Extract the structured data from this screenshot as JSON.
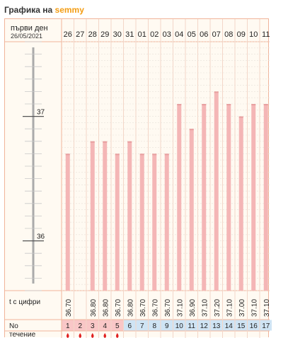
{
  "header": {
    "title_prefix": "Графика на",
    "username": "semmy"
  },
  "chart_header": {
    "first_day_label": "първи ден",
    "start_date": "26/05/2021"
  },
  "row_labels": {
    "temp_row": "t с цифри",
    "no_row": "No",
    "flow_row": "течение"
  },
  "colors": {
    "accent": "#f39c12",
    "border": "#f0b49a",
    "bar": "#f4b6b6",
    "cell_pink": "#f9c7c7",
    "cell_blue": "#cfe4f4",
    "flow_drop": "#e02020"
  },
  "chart_data": {
    "type": "bar",
    "title": "",
    "xlabel": "",
    "ylabel": "",
    "ylim": [
      35.6,
      37.6
    ],
    "y_ticks": [
      36,
      37
    ],
    "grid": true,
    "categories": [
      "26",
      "27",
      "28",
      "29",
      "30",
      "31",
      "01",
      "02",
      "03",
      "04",
      "05",
      "06",
      "07",
      "08",
      "09",
      "10",
      "11"
    ],
    "day_numbers": [
      1,
      2,
      3,
      4,
      5,
      6,
      7,
      8,
      9,
      10,
      11,
      12,
      13,
      14,
      15,
      16,
      17
    ],
    "values": [
      36.7,
      null,
      36.8,
      36.8,
      36.7,
      36.8,
      36.7,
      36.7,
      36.7,
      37.1,
      36.9,
      37.1,
      37.2,
      37.1,
      37.0,
      37.1,
      37.1
    ],
    "value_labels": [
      "36.70",
      "",
      "36.80",
      "36.80",
      "36.70",
      "36.80",
      "36.70",
      "36.70",
      "36.70",
      "37.10",
      "36.90",
      "37.10",
      "37.20",
      "37.10",
      "37.00",
      "37.10",
      "37.10"
    ],
    "day_cell_color": [
      "pink",
      "pink",
      "pink",
      "pink",
      "pink",
      "blue",
      "blue",
      "blue",
      "blue",
      "blue",
      "blue",
      "blue",
      "blue",
      "blue",
      "blue",
      "blue",
      "blue"
    ],
    "flow": [
      true,
      true,
      true,
      true,
      true,
      false,
      false,
      false,
      false,
      false,
      false,
      false,
      false,
      false,
      false,
      false,
      false
    ]
  }
}
